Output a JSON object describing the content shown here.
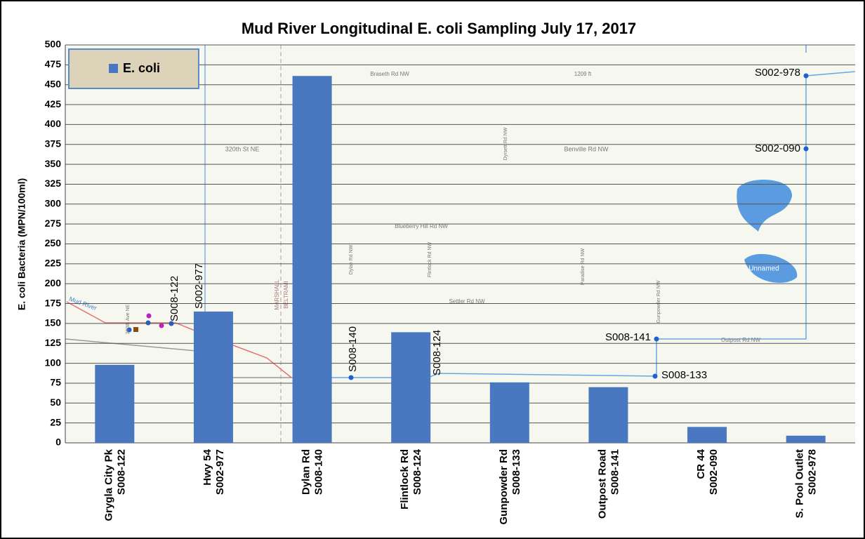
{
  "chart_data": {
    "type": "bar",
    "title": "Mud River Longitudinal E. coli Sampling  July 17, 2017",
    "y_label": "E. coli Bacteria (MPN/100ml)",
    "categories": [
      [
        "Grygla City Pk",
        "S008-122"
      ],
      [
        "Hwy 54",
        "S002-977"
      ],
      [
        "Dylan Rd",
        "S008-140"
      ],
      [
        "Flintlock Rd",
        "S008-124"
      ],
      [
        "Gunpowder Rd",
        "S008-133"
      ],
      [
        "Outpost Road",
        "S008-141"
      ],
      [
        "CR 44",
        "S002-090"
      ],
      [
        "S. Pool Outlet",
        "S002-978"
      ]
    ],
    "series": [
      {
        "name": "E. coli",
        "color": "#4a78c0",
        "values": [
          98,
          165,
          461,
          139,
          76,
          70,
          20,
          9
        ]
      }
    ],
    "ylim": [
      0,
      500
    ],
    "yticks": [
      0,
      25,
      50,
      75,
      100,
      125,
      150,
      175,
      200,
      225,
      250,
      275,
      300,
      325,
      350,
      375,
      400,
      425,
      450,
      475,
      500
    ],
    "grid": true,
    "legend": "top-left",
    "map_labels": [
      "S008-122",
      "S002-977",
      "S008-140",
      "S008-124",
      "S008-141",
      "S008-133",
      "S002-090",
      "S002-978",
      "Braseth Rd NW",
      "1209 ft",
      "320th St NE",
      "Benville Rd NW",
      "Blueberry Hill Rd NW",
      "Settler Rd NW",
      "Outpost Rd NW",
      "Mud River",
      "Unnamed",
      "Dylan Rd NW",
      "Flintlock Rd NW",
      "Paradise Rd NW",
      "Gunpowder Rd NW",
      "Dyrsett Rd NW",
      "MARSHALL",
      "BELTRAMI",
      "390th Ave NE"
    ]
  }
}
